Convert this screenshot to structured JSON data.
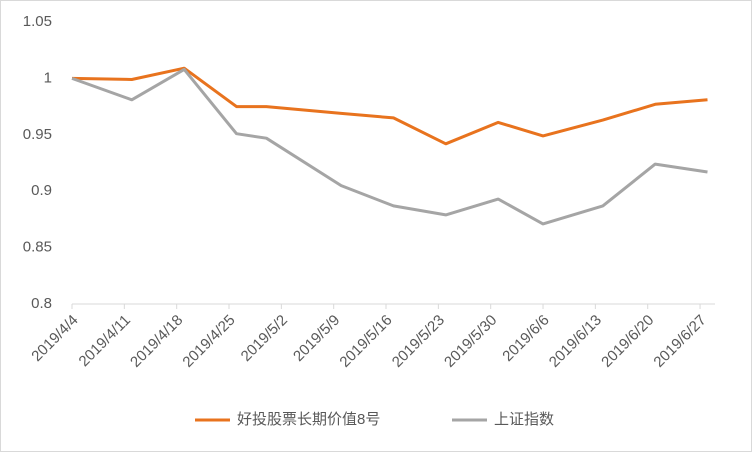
{
  "chart_data": {
    "type": "line",
    "x": [
      "2019-04-04",
      "2019-04-12",
      "2019-04-19",
      "2019-04-26",
      "2019-04-30",
      "2019-05-10",
      "2019-05-17",
      "2019-05-24",
      "2019-05-31",
      "2019-06-06",
      "2019-06-14",
      "2019-06-21",
      "2019-06-28"
    ],
    "series": [
      {
        "name": "好投股票长期价值8号",
        "color": "#e8731e",
        "values": [
          1.0,
          0.999,
          1.009,
          0.975,
          0.975,
          0.969,
          0.965,
          0.942,
          0.961,
          0.949,
          0.963,
          0.977,
          0.981
        ]
      },
      {
        "name": "上证指数",
        "color": "#a5a5a5",
        "values": [
          1.0,
          0.981,
          1.008,
          0.951,
          0.947,
          0.905,
          0.887,
          0.879,
          0.893,
          0.871,
          0.887,
          0.924,
          0.917
        ]
      }
    ],
    "xlim": [
      "2019-04-04",
      "2019-06-29"
    ],
    "xticks": [
      {
        "value": "2019-04-04",
        "label": "2019/4/4"
      },
      {
        "value": "2019-04-11",
        "label": "2019/4/11"
      },
      {
        "value": "2019-04-18",
        "label": "2019/4/18"
      },
      {
        "value": "2019-04-25",
        "label": "2019/4/25"
      },
      {
        "value": "2019-05-02",
        "label": "2019/5/2"
      },
      {
        "value": "2019-05-09",
        "label": "2019/5/9"
      },
      {
        "value": "2019-05-16",
        "label": "2019/5/16"
      },
      {
        "value": "2019-05-23",
        "label": "2019/5/23"
      },
      {
        "value": "2019-05-30",
        "label": "2019/5/30"
      },
      {
        "value": "2019-06-06",
        "label": "2019/6/6"
      },
      {
        "value": "2019-06-13",
        "label": "2019/6/13"
      },
      {
        "value": "2019-06-20",
        "label": "2019/6/20"
      },
      {
        "value": "2019-06-27",
        "label": "2019/6/27"
      }
    ],
    "ylim": [
      0.8,
      1.05
    ],
    "yticks": [
      0.8,
      0.85,
      0.9,
      0.95,
      1,
      1.05
    ],
    "grid": false,
    "legend": "bottom"
  }
}
